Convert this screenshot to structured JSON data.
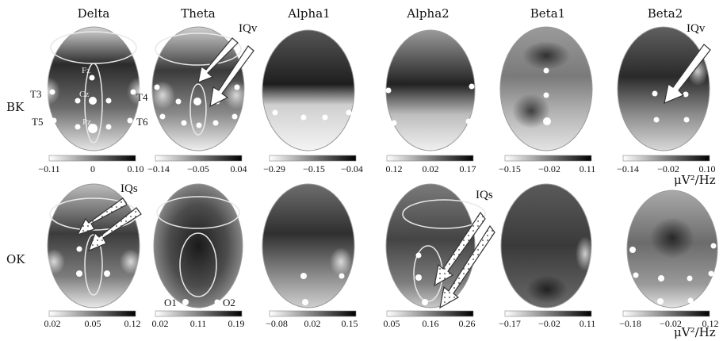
{
  "bands": [
    "Delta",
    "Theta",
    "Alpha1",
    "Alpha2",
    "Beta1",
    "Beta2"
  ],
  "rows": [
    {
      "label": "BK",
      "colorbars": [
        {
          "ticks": [
            "−0.11",
            "0",
            "0.10"
          ]
        },
        {
          "ticks": [
            "−0.14",
            "−0.05",
            "0.04"
          ]
        },
        {
          "ticks": [
            "−0.29",
            "−0.15",
            "−0.04"
          ]
        },
        {
          "ticks": [
            "0.12",
            "0.02",
            "0.17"
          ]
        },
        {
          "ticks": [
            "−0.15",
            "−0.02",
            "0.11"
          ]
        },
        {
          "ticks": [
            "−0.14",
            "−0.02",
            "0.10"
          ]
        }
      ],
      "unit": "μV²/Hz"
    },
    {
      "label": "OK",
      "colorbars": [
        {
          "ticks": [
            "0.02",
            "0.05",
            "0.12"
          ]
        },
        {
          "ticks": [
            "0.02",
            "0.11",
            "0.19"
          ]
        },
        {
          "ticks": [
            "−0.08",
            "0.02",
            "0.15"
          ]
        },
        {
          "ticks": [
            "0.05",
            "0.16",
            "0.26"
          ]
        },
        {
          "ticks": [
            "−0.17",
            "−0.02",
            "0.11"
          ]
        },
        {
          "ticks": [
            "−0.18",
            "−0.02",
            "0.12"
          ]
        }
      ],
      "unit": "μV²/Hz"
    }
  ],
  "electrode_labels": [
    "Fz",
    "Cz",
    "Pz",
    "T3",
    "T4",
    "T5",
    "T6",
    "O1",
    "O2"
  ],
  "annotations": {
    "bk_theta": "IQv",
    "bk_beta2": "IQv",
    "ok_delta": "IQs",
    "ok_alpha2": "IQs"
  }
}
